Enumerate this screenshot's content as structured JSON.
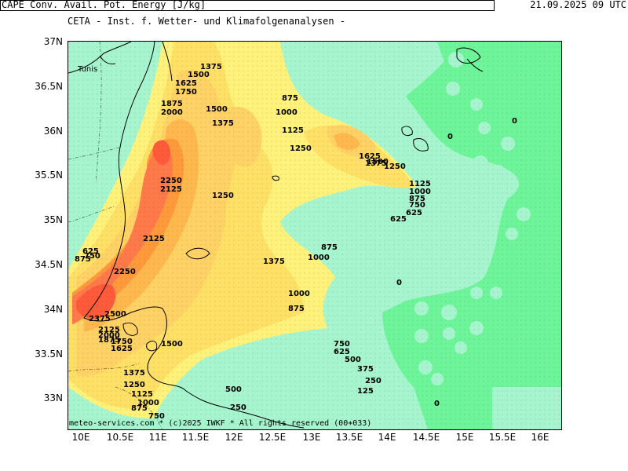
{
  "header": {
    "title": "CETA - Inst. f. Wetter- und Klimafolgenanalysen -",
    "parameter": "CAPE Conv. Avail. Pot. Energy [J/kg]",
    "datetime": "21.09.2025 09 UTC"
  },
  "footer": "meteo-services.com * (c)2025 IWKF * All rights reserved (00+033)",
  "map": {
    "place_label": "Tunis",
    "lat_labels": [
      "37N",
      "36.5N",
      "36N",
      "35.5N",
      "35N",
      "34.5N",
      "34N",
      "33.5N",
      "33N"
    ],
    "lon_labels": [
      "10E",
      "10.5E",
      "11E",
      "11.5E",
      "12E",
      "12.5E",
      "13E",
      "13.5E",
      "14E",
      "14.5E",
      "15E",
      "15.5E",
      "16E"
    ],
    "contour_labels": [
      "1375",
      "1500",
      "1625",
      "1750",
      "1875",
      "2000",
      "1500",
      "1375",
      "875",
      "1000",
      "1125",
      "1250",
      "1625",
      "1500",
      "1375",
      "1250",
      "2250",
      "2125",
      "1125",
      "1000",
      "875",
      "750",
      "625",
      "625",
      "1250",
      "2125",
      "625",
      "750",
      "875",
      "1375",
      "1000",
      "875",
      "2250",
      "0",
      "2500",
      "2375",
      "2125",
      "2000",
      "1875",
      "1750",
      "1625",
      "1000",
      "875",
      "1500",
      "750",
      "625",
      "500",
      "375",
      "250",
      "125",
      "1375",
      "1250",
      "1125",
      "1000",
      "875",
      "750",
      "500",
      "250",
      "0",
      "0",
      "0"
    ],
    "colors": {
      "sea_low": "#a6f5cf",
      "sea_zero": "#6ef59a",
      "c875": "#fff27a",
      "c1125": "#ffe066",
      "c1375": "#ffd266",
      "c1625": "#ffb84d",
      "c1875": "#ff9a3c",
      "c2125": "#ff7a4a",
      "c2375": "#ff5a3a",
      "coast": "#000000"
    }
  }
}
